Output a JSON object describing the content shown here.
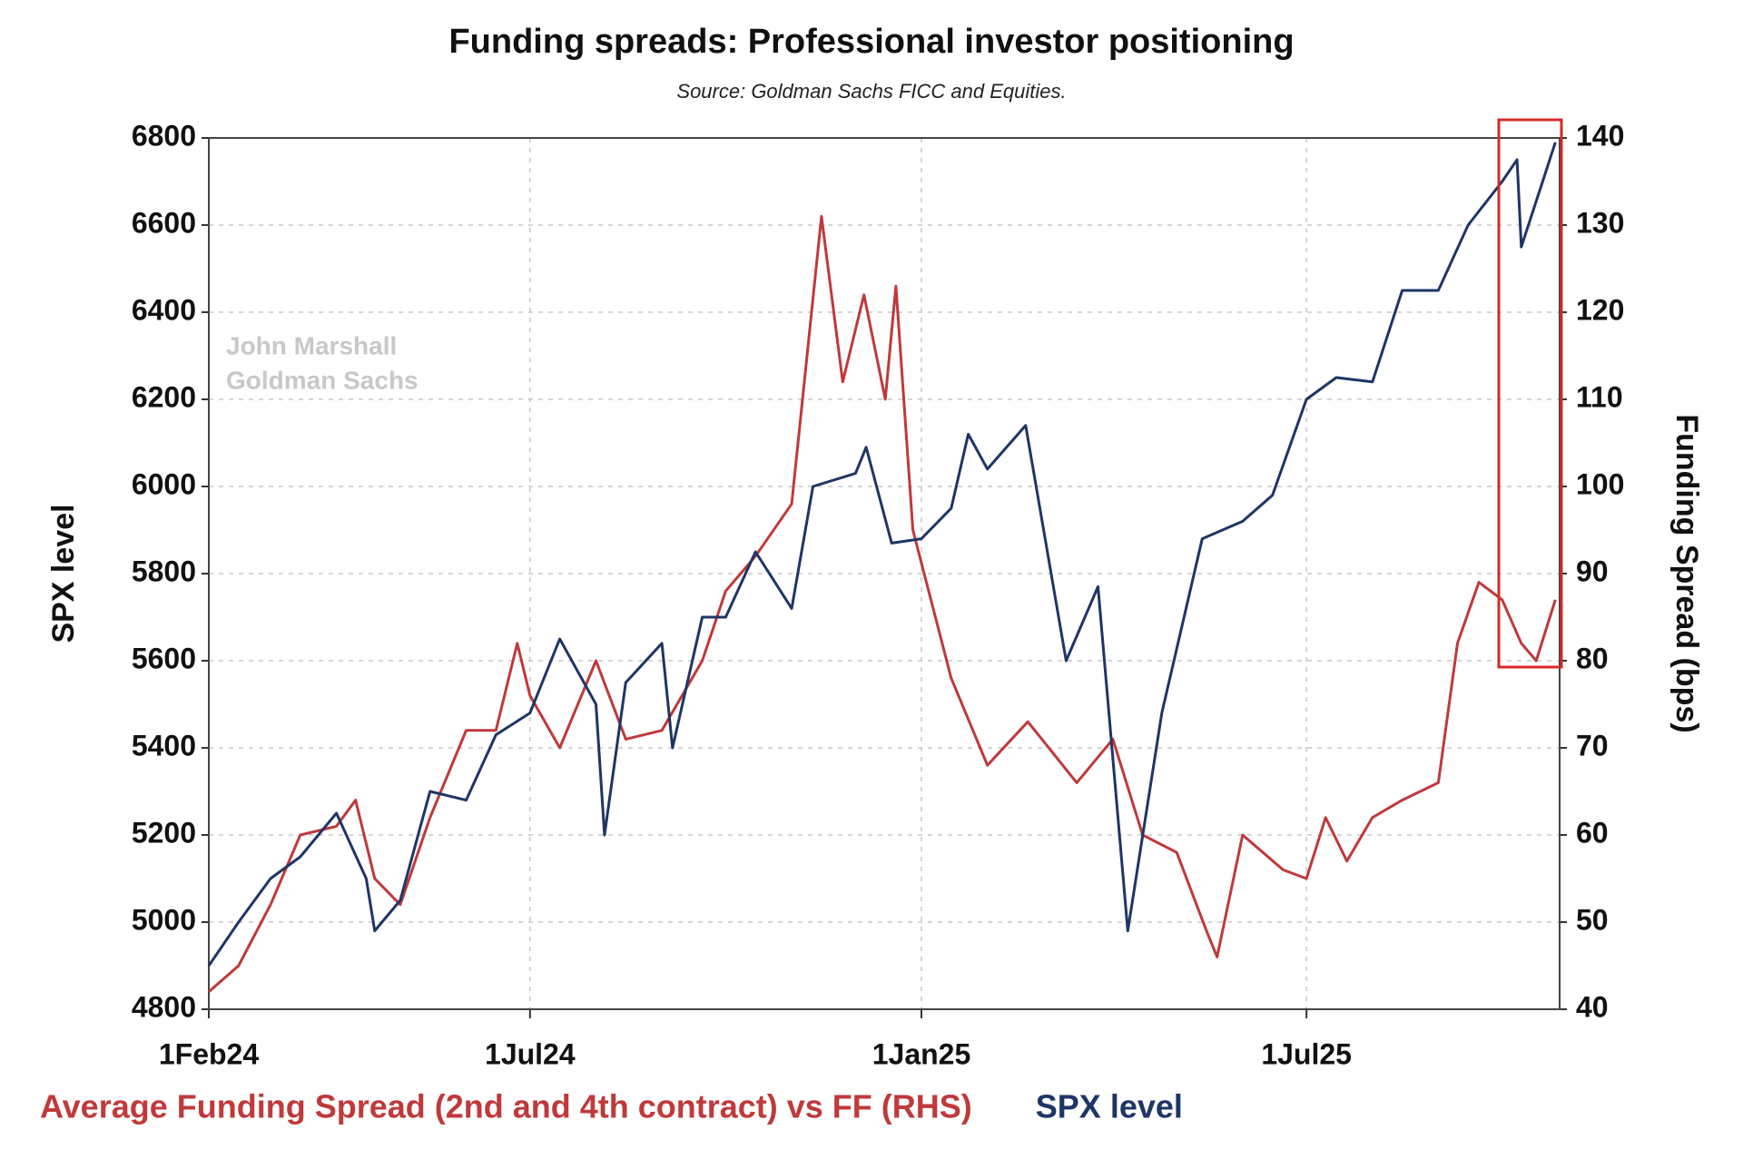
{
  "chart_data": {
    "type": "line",
    "title": "Funding spreads: Professional investor positioning",
    "subtitle": "Source: Goldman Sachs FICC and Equities.",
    "annotations": [
      "John Marshall",
      "Goldman Sachs"
    ],
    "y_label": "SPX level",
    "y2_label": "Funding Spread (bps)",
    "xlim": [
      "2024-02-01",
      "2025-10-28"
    ],
    "xticks": [
      {
        "value": "2024-02-01",
        "label": "1Feb24"
      },
      {
        "value": "2024-07-01",
        "label": "1Jul24"
      },
      {
        "value": "2025-01-01",
        "label": "1Jan25"
      },
      {
        "value": "2025-07-01",
        "label": "1Jul25"
      }
    ],
    "ylim": [
      4800,
      6800
    ],
    "yticks": [
      4800,
      5000,
      5200,
      5400,
      5600,
      5800,
      6000,
      6200,
      6400,
      6600,
      6800
    ],
    "y2lim": [
      40,
      140
    ],
    "y2ticks": [
      40,
      50,
      60,
      70,
      80,
      90,
      100,
      110,
      120,
      130,
      140
    ],
    "grid": true,
    "legend": "bottom",
    "series": [
      {
        "name": "Average Funding Spread (2nd and 4th contract) vs FF (RHS)",
        "color": "#c0393b",
        "axis": "y2",
        "x": [
          "2024-02-01",
          "2024-02-15",
          "2024-03-01",
          "2024-03-15",
          "2024-04-01",
          "2024-04-10",
          "2024-04-19",
          "2024-05-01",
          "2024-05-15",
          "2024-06-01",
          "2024-06-15",
          "2024-06-25",
          "2024-07-01",
          "2024-07-15",
          "2024-08-01",
          "2024-08-15",
          "2024-09-01",
          "2024-09-20",
          "2024-10-01",
          "2024-10-15",
          "2024-11-01",
          "2024-11-15",
          "2024-11-25",
          "2024-12-05",
          "2024-12-15",
          "2024-12-20",
          "2024-12-28",
          "2025-01-15",
          "2025-02-01",
          "2025-02-20",
          "2025-03-15",
          "2025-04-01",
          "2025-04-15",
          "2025-05-01",
          "2025-05-15",
          "2025-05-20",
          "2025-06-01",
          "2025-06-20",
          "2025-07-01",
          "2025-07-10",
          "2025-07-20",
          "2025-08-01",
          "2025-08-15",
          "2025-09-01",
          "2025-09-10",
          "2025-09-20",
          "2025-10-01",
          "2025-10-10",
          "2025-10-17",
          "2025-10-26"
        ],
        "values": [
          42,
          45,
          52,
          60,
          61,
          64,
          55,
          52,
          62,
          72,
          72,
          82,
          76,
          70,
          80,
          71,
          72,
          80,
          88,
          92,
          98,
          131,
          112,
          122,
          110,
          123,
          95,
          78,
          68,
          73,
          66,
          71,
          60,
          58,
          49,
          46,
          60,
          56,
          55,
          62,
          57,
          62,
          64,
          66,
          82,
          89,
          87,
          82,
          80,
          87
        ]
      },
      {
        "name": "SPX level",
        "color": "#1f3566",
        "axis": "y",
        "x": [
          "2024-02-01",
          "2024-02-15",
          "2024-03-01",
          "2024-03-15",
          "2024-04-01",
          "2024-04-15",
          "2024-04-19",
          "2024-05-01",
          "2024-05-15",
          "2024-06-01",
          "2024-06-15",
          "2024-07-01",
          "2024-07-15",
          "2024-08-01",
          "2024-08-05",
          "2024-08-15",
          "2024-09-01",
          "2024-09-06",
          "2024-09-20",
          "2024-10-01",
          "2024-10-15",
          "2024-11-01",
          "2024-11-11",
          "2024-12-01",
          "2024-12-06",
          "2024-12-18",
          "2025-01-01",
          "2025-01-15",
          "2025-01-23",
          "2025-02-01",
          "2025-02-19",
          "2025-03-10",
          "2025-03-25",
          "2025-04-08",
          "2025-04-24",
          "2025-05-13",
          "2025-06-01",
          "2025-06-15",
          "2025-07-01",
          "2025-07-15",
          "2025-08-01",
          "2025-08-15",
          "2025-09-01",
          "2025-09-15",
          "2025-10-01",
          "2025-10-08",
          "2025-10-10",
          "2025-10-20",
          "2025-10-26"
        ],
        "values": [
          4900,
          5000,
          5100,
          5150,
          5250,
          5100,
          4980,
          5050,
          5300,
          5280,
          5430,
          5480,
          5650,
          5500,
          5200,
          5550,
          5640,
          5400,
          5700,
          5700,
          5850,
          5720,
          6000,
          6030,
          6090,
          5870,
          5880,
          5950,
          6120,
          6040,
          6140,
          5600,
          5770,
          4980,
          5480,
          5880,
          5920,
          5980,
          6200,
          6250,
          6240,
          6450,
          6450,
          6600,
          6700,
          6750,
          6550,
          6700,
          6790
        ]
      }
    ]
  }
}
